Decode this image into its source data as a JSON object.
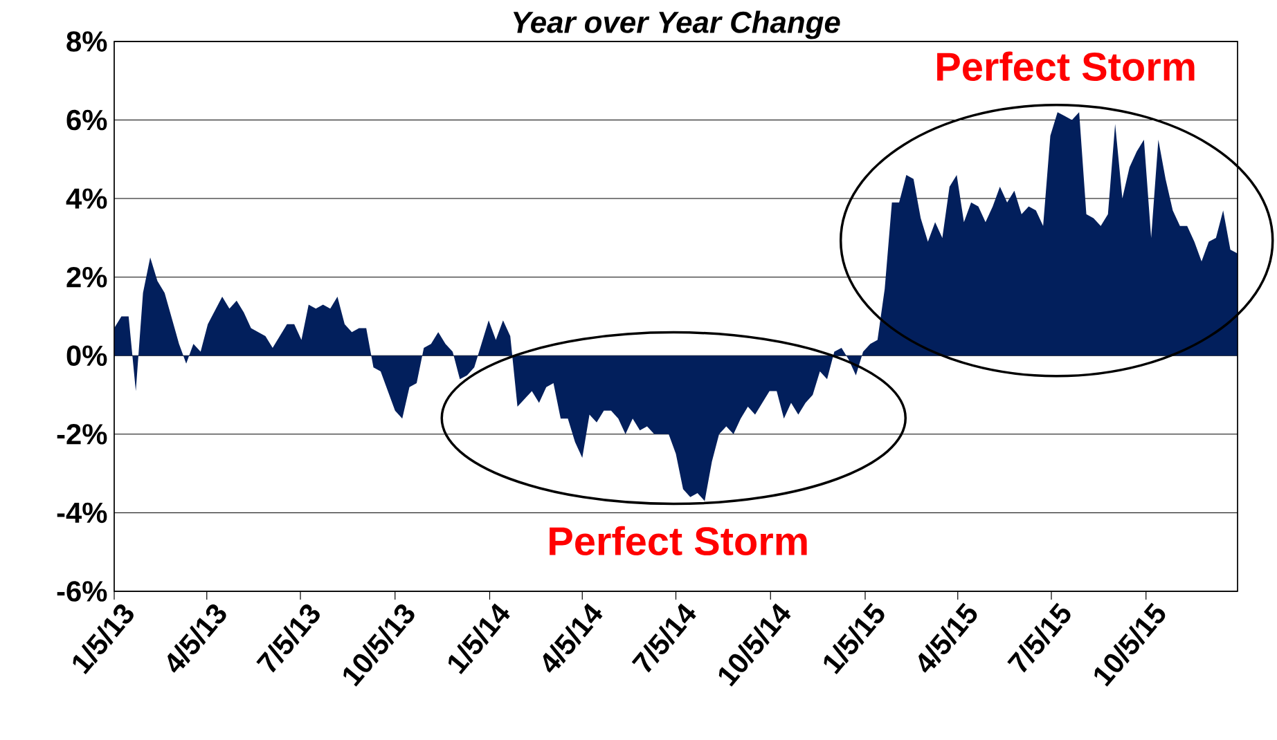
{
  "chart_data": {
    "type": "area",
    "title": "Year over Year Change",
    "x": [
      "2013-01-05",
      "2013-01-12",
      "2013-01-19",
      "2013-01-26",
      "2013-02-02",
      "2013-02-09",
      "2013-02-16",
      "2013-02-23",
      "2013-03-09",
      "2013-03-16",
      "2013-03-23",
      "2013-03-30",
      "2013-04-06",
      "2013-04-20",
      "2013-04-27",
      "2013-05-04",
      "2013-05-11",
      "2013-05-18",
      "2013-06-01",
      "2013-06-08",
      "2013-06-22",
      "2013-06-29",
      "2013-07-06",
      "2013-07-13",
      "2013-07-20",
      "2013-07-27",
      "2013-08-03",
      "2013-08-10",
      "2013-08-17",
      "2013-08-24",
      "2013-08-31",
      "2013-09-07",
      "2013-09-14",
      "2013-09-21",
      "2013-10-05",
      "2013-10-12",
      "2013-10-19",
      "2013-10-26",
      "2013-11-02",
      "2013-11-09",
      "2013-11-16",
      "2013-11-23",
      "2013-11-30",
      "2013-12-07",
      "2013-12-14",
      "2013-12-21",
      "2014-01-04",
      "2014-01-11",
      "2014-01-18",
      "2014-01-25",
      "2014-02-01",
      "2014-02-08",
      "2014-02-15",
      "2014-02-22",
      "2014-03-01",
      "2014-03-08",
      "2014-03-15",
      "2014-03-22",
      "2014-03-29",
      "2014-04-05",
      "2014-04-12",
      "2014-04-19",
      "2014-04-26",
      "2014-05-03",
      "2014-05-10",
      "2014-05-17",
      "2014-05-24",
      "2014-05-31",
      "2014-06-07",
      "2014-06-14",
      "2014-06-28",
      "2014-07-05",
      "2014-07-12",
      "2014-07-19",
      "2014-07-26",
      "2014-08-02",
      "2014-08-09",
      "2014-08-16",
      "2014-08-23",
      "2014-08-30",
      "2014-09-06",
      "2014-09-13",
      "2014-09-20",
      "2014-09-27",
      "2014-10-04",
      "2014-10-11",
      "2014-10-18",
      "2014-10-25",
      "2014-11-01",
      "2014-11-08",
      "2014-11-15",
      "2014-11-22",
      "2014-11-29",
      "2014-12-06",
      "2014-12-13",
      "2014-12-20",
      "2014-12-27",
      "2015-01-03",
      "2015-01-10",
      "2015-01-17",
      "2015-01-24",
      "2015-01-31",
      "2015-02-07",
      "2015-02-14",
      "2015-02-21",
      "2015-02-28",
      "2015-03-07",
      "2015-03-14",
      "2015-03-21",
      "2015-03-28",
      "2015-04-04",
      "2015-04-11",
      "2015-04-18",
      "2015-04-25",
      "2015-05-02",
      "2015-05-09",
      "2015-05-16",
      "2015-05-23",
      "2015-05-30",
      "2015-06-06",
      "2015-06-13",
      "2015-06-20",
      "2015-06-27",
      "2015-07-04",
      "2015-07-11",
      "2015-07-18",
      "2015-07-25",
      "2015-08-01",
      "2015-08-08",
      "2015-08-15",
      "2015-08-22",
      "2015-08-29",
      "2015-09-05",
      "2015-09-12",
      "2015-09-19",
      "2015-09-26",
      "2015-10-03",
      "2015-10-10",
      "2015-10-17",
      "2015-10-24",
      "2015-10-31",
      "2015-11-07",
      "2015-11-14",
      "2015-11-21",
      "2015-11-28",
      "2015-12-05",
      "2015-12-12",
      "2015-12-19",
      "2015-12-26",
      "2016-01-02"
    ],
    "values": [
      0.7,
      1.0,
      1.0,
      -0.9,
      1.6,
      2.5,
      1.9,
      1.6,
      0.3,
      -0.2,
      0.3,
      0.1,
      0.8,
      1.5,
      1.2,
      1.4,
      1.1,
      0.7,
      0.5,
      0.2,
      0.8,
      0.8,
      0.4,
      1.3,
      1.2,
      1.3,
      1.2,
      1.5,
      0.8,
      0.6,
      0.7,
      0.7,
      -0.3,
      -0.4,
      -1.4,
      -1.6,
      -0.8,
      -0.7,
      0.2,
      0.3,
      0.6,
      0.3,
      0.1,
      -0.6,
      -0.5,
      -0.3,
      0.9,
      0.4,
      0.9,
      0.5,
      -1.3,
      -1.1,
      -0.9,
      -1.2,
      -0.8,
      -0.7,
      -1.6,
      -1.6,
      -2.2,
      -2.6,
      -1.5,
      -1.7,
      -1.4,
      -1.4,
      -1.6,
      -2.0,
      -1.6,
      -1.9,
      -1.8,
      -2.0,
      -2.0,
      -2.5,
      -3.4,
      -3.6,
      -3.5,
      -3.7,
      -2.7,
      -2.0,
      -1.8,
      -2.0,
      -1.6,
      -1.3,
      -1.5,
      -1.2,
      -0.9,
      -0.9,
      -1.6,
      -1.2,
      -1.5,
      -1.2,
      -1.0,
      -0.4,
      -0.6,
      0.1,
      0.2,
      -0.1,
      -0.5,
      0.1,
      0.3,
      0.4,
      1.7,
      3.9,
      3.9,
      4.6,
      4.5,
      3.5,
      2.9,
      3.4,
      3.0,
      4.3,
      4.6,
      3.4,
      3.9,
      3.8,
      3.4,
      3.8,
      4.3,
      3.9,
      4.2,
      3.6,
      3.8,
      3.7,
      3.3,
      5.6,
      6.2,
      6.1,
      6.0,
      6.2,
      3.6,
      3.5,
      3.3,
      3.6,
      5.9,
      4.0,
      4.8,
      5.2,
      5.5,
      3.0,
      5.5,
      4.5,
      3.7,
      3.3,
      3.3,
      2.9,
      2.4,
      2.9,
      3.0,
      3.7,
      2.7,
      2.6
    ],
    "color": "#021f5c",
    "xlim": [
      "2013-01-05",
      "2016-01-02"
    ],
    "xticks": [
      {
        "value": "2013-01-05",
        "label": "1/5/13"
      },
      {
        "value": "2013-04-05",
        "label": "4/5/13"
      },
      {
        "value": "2013-07-05",
        "label": "7/5/13"
      },
      {
        "value": "2013-10-05",
        "label": "10/5/13"
      },
      {
        "value": "2014-01-05",
        "label": "1/5/14"
      },
      {
        "value": "2014-04-05",
        "label": "4/5/14"
      },
      {
        "value": "2014-07-05",
        "label": "7/5/14"
      },
      {
        "value": "2014-10-05",
        "label": "10/5/14"
      },
      {
        "value": "2015-01-05",
        "label": "1/5/15"
      },
      {
        "value": "2015-04-05",
        "label": "4/5/15"
      },
      {
        "value": "2015-07-05",
        "label": "7/5/15"
      },
      {
        "value": "2015-10-05",
        "label": "10/5/15"
      }
    ],
    "ylim": [
      -6,
      8
    ],
    "yticks": [
      {
        "value": -6,
        "label": "-6%"
      },
      {
        "value": -4,
        "label": "-4%"
      },
      {
        "value": -2,
        "label": "-2%"
      },
      {
        "value": 0,
        "label": "0%"
      },
      {
        "value": 2,
        "label": "2%"
      },
      {
        "value": 4,
        "label": "4%"
      },
      {
        "value": 6,
        "label": "6%"
      },
      {
        "value": 8,
        "label": "8%"
      }
    ],
    "grid": "y",
    "annotations": [
      "Perfect Storm",
      "Perfect Storm"
    ]
  }
}
